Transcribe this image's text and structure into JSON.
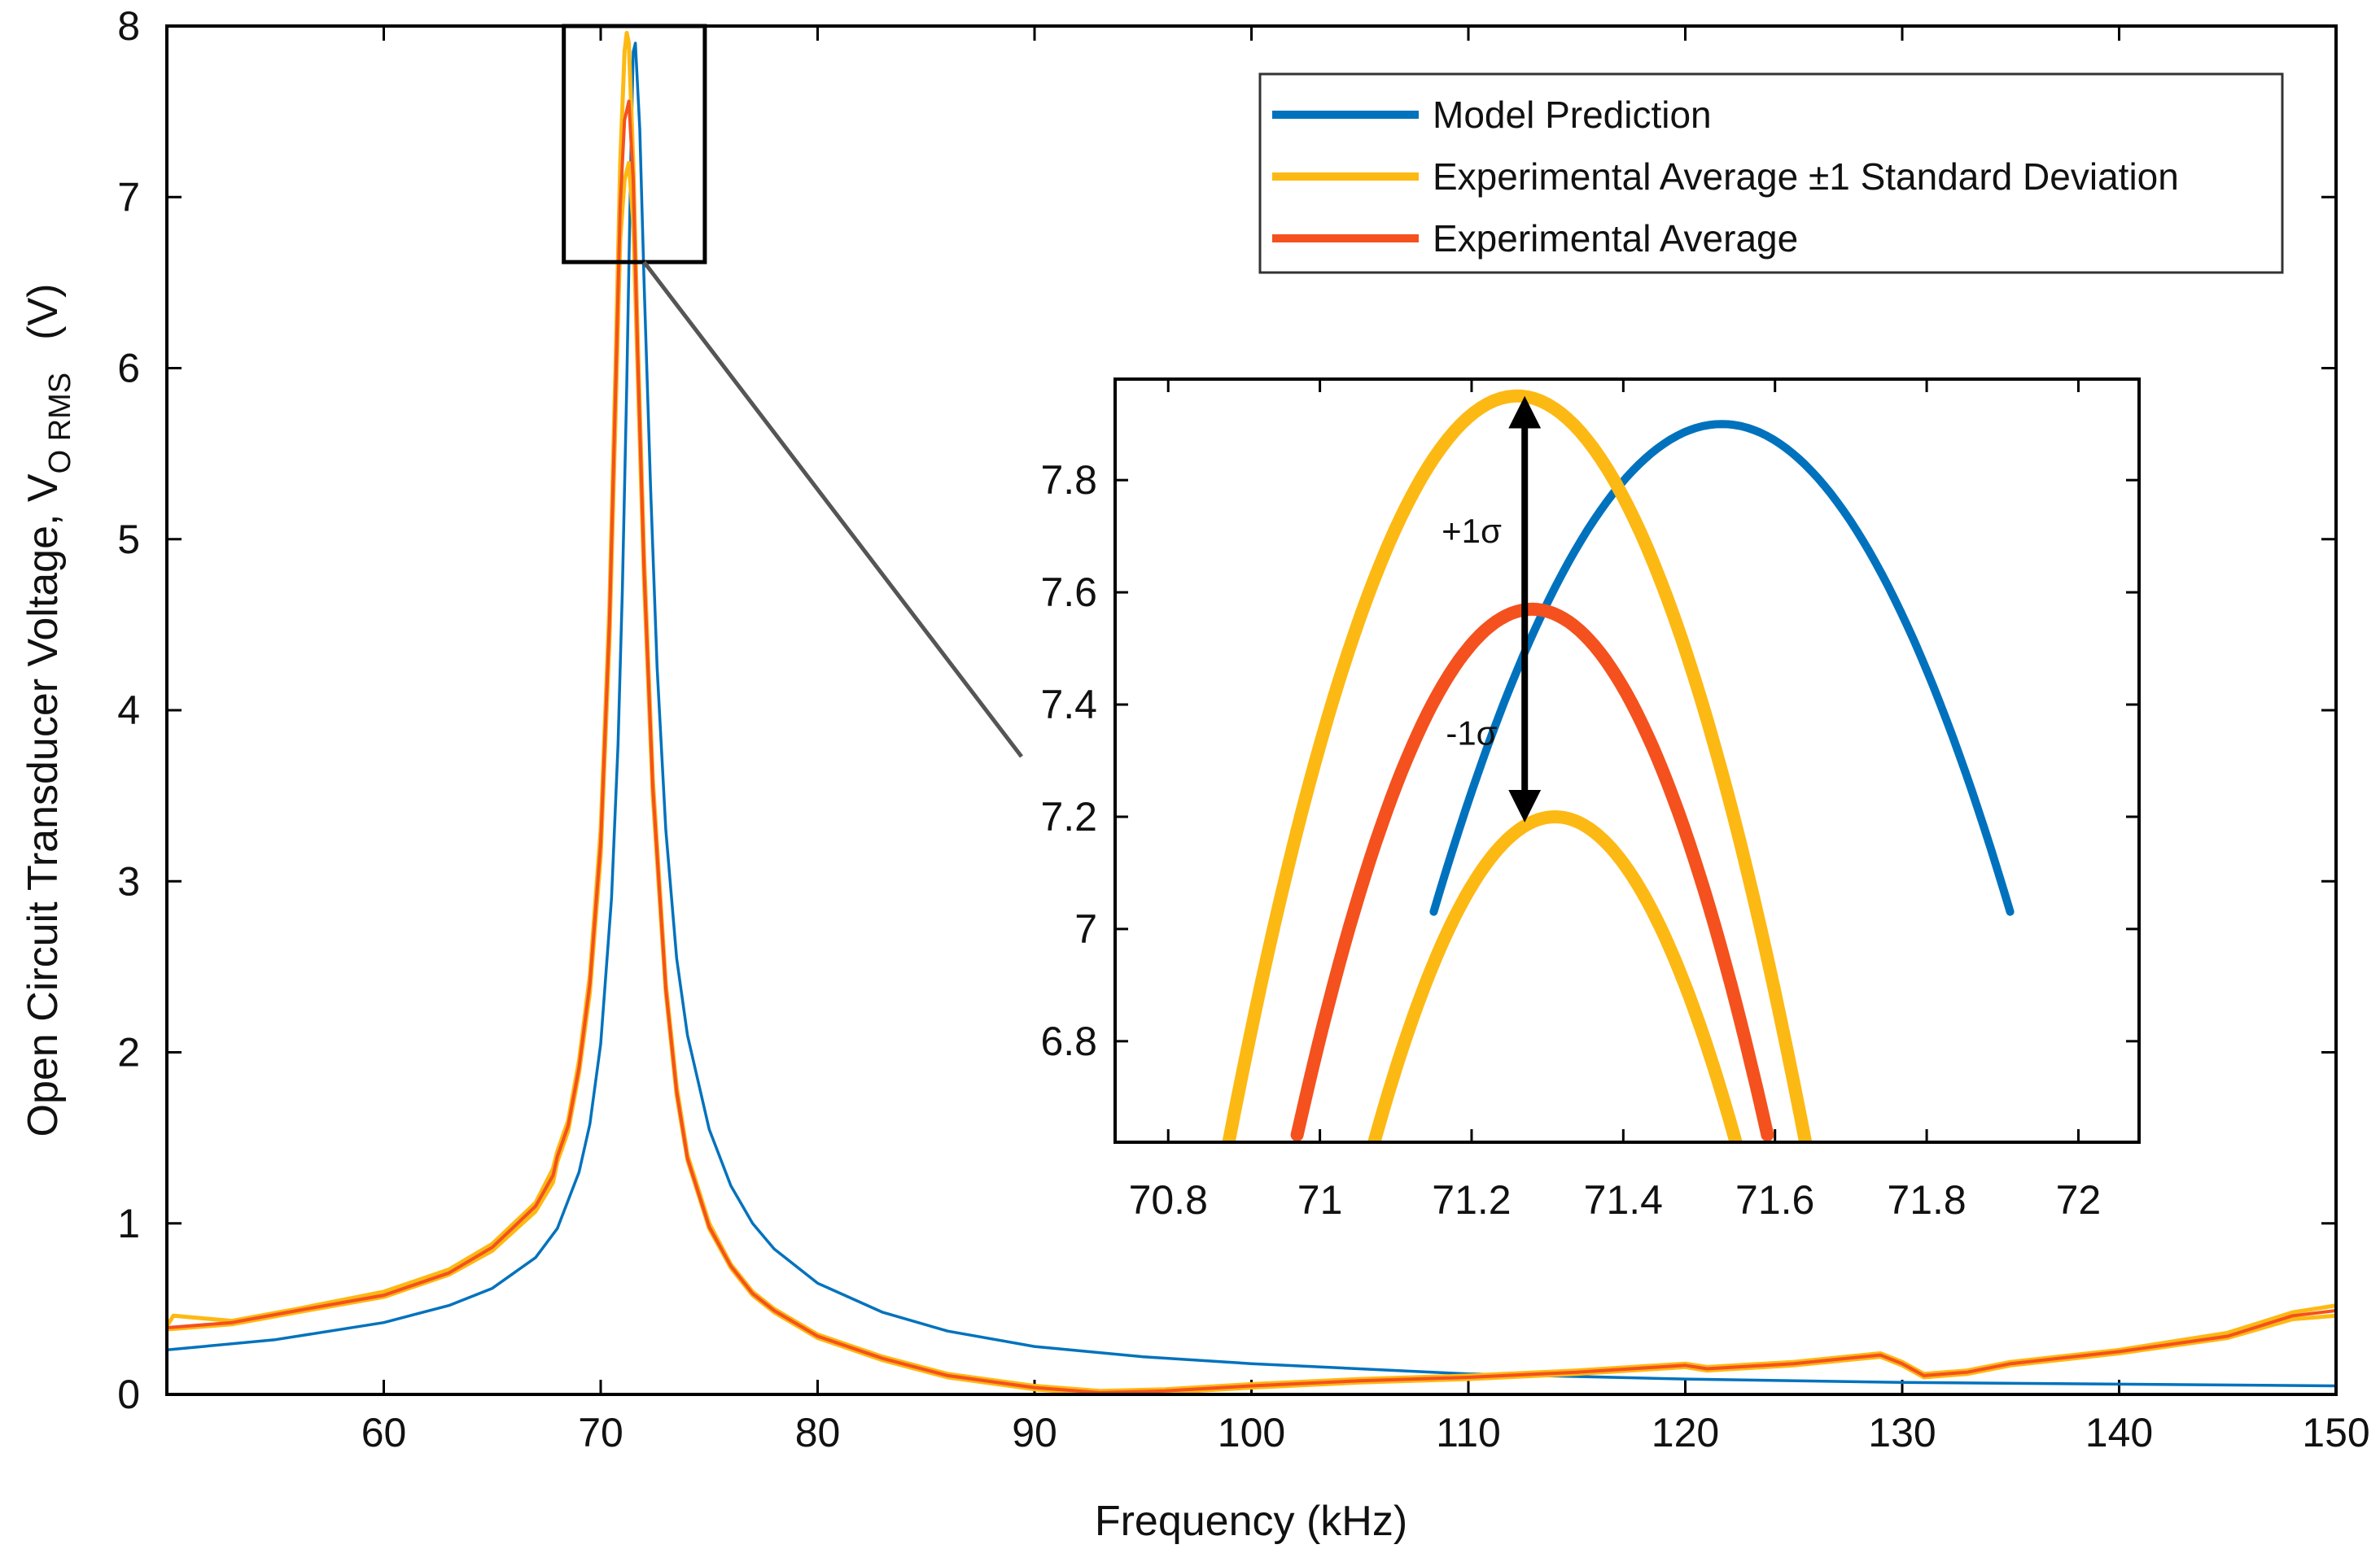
{
  "chart_data": [
    {
      "id": "main",
      "type": "line",
      "title": "",
      "xlabel": "Frequency (kHz)",
      "ylabel": "Open Circuit Transducer Voltage, V",
      "ylabel_subscript": "O RMS",
      "ylabel_units": "(V)",
      "xlim": [
        50,
        150
      ],
      "ylim": [
        0,
        8
      ],
      "xticks": [
        60,
        70,
        80,
        90,
        100,
        110,
        120,
        130,
        140,
        150
      ],
      "yticks": [
        0,
        1,
        2,
        3,
        4,
        5,
        6,
        7,
        8
      ],
      "grid": false,
      "legend_position": "top-right",
      "legend": [
        {
          "label": "Model Prediction",
          "color": "#0072BD"
        },
        {
          "label": "Experimental Average ±1 Standard Deviation",
          "color": "#FDB913"
        },
        {
          "label": "Experimental Average",
          "color": "#F4511E"
        }
      ],
      "zoom_box": {
        "x_range": [
          68.3,
          74.8
        ],
        "y_range": [
          6.62,
          8.0
        ]
      },
      "series": [
        {
          "name": "Model Prediction",
          "color": "#0072BD",
          "x": [
            50,
            55,
            60,
            63,
            65,
            67,
            68,
            69,
            69.5,
            70,
            70.5,
            70.8,
            71,
            71.2,
            71.4,
            71.5,
            71.6,
            71.8,
            72,
            72.3,
            72.6,
            73,
            73.5,
            74,
            75,
            76,
            77,
            78,
            80,
            83,
            86,
            90,
            95,
            100,
            110,
            120,
            130,
            140,
            150
          ],
          "y": [
            0.26,
            0.32,
            0.42,
            0.52,
            0.62,
            0.8,
            0.97,
            1.3,
            1.58,
            2.05,
            2.9,
            3.8,
            4.7,
            5.9,
            7.3,
            7.85,
            7.9,
            7.4,
            6.5,
            5.3,
            4.25,
            3.3,
            2.55,
            2.1,
            1.55,
            1.22,
            1.0,
            0.85,
            0.65,
            0.48,
            0.37,
            0.28,
            0.22,
            0.18,
            0.12,
            0.09,
            0.07,
            0.06,
            0.05
          ]
        },
        {
          "name": "Experimental Average + 1σ",
          "color": "#FDB913",
          "x": [
            50,
            50.3,
            53,
            56,
            60,
            63,
            65,
            67,
            67.8,
            68,
            68.5,
            69,
            69.5,
            70,
            70.4,
            70.7,
            70.9,
            71.1,
            71.2,
            71.3,
            71.5,
            71.7,
            72,
            72.4,
            73,
            73.5,
            74,
            75,
            76,
            77,
            78,
            80,
            83,
            86,
            90,
            93,
            96,
            100,
            105,
            110,
            115,
            120,
            121,
            125,
            129,
            130,
            131,
            133,
            135,
            140,
            145,
            148,
            150
          ],
          "y": [
            0.4,
            0.46,
            0.43,
            0.5,
            0.6,
            0.73,
            0.88,
            1.12,
            1.32,
            1.42,
            1.6,
            1.95,
            2.45,
            3.3,
            4.6,
            6.1,
            7.2,
            7.85,
            7.96,
            7.9,
            7.2,
            6.2,
            4.9,
            3.6,
            2.4,
            1.8,
            1.4,
            1.0,
            0.76,
            0.6,
            0.5,
            0.35,
            0.22,
            0.12,
            0.05,
            0.02,
            0.03,
            0.06,
            0.09,
            0.11,
            0.14,
            0.18,
            0.16,
            0.19,
            0.24,
            0.19,
            0.12,
            0.14,
            0.19,
            0.26,
            0.36,
            0.48,
            0.52
          ]
        },
        {
          "name": "Experimental Average − 1σ",
          "color": "#FDB913",
          "x": [
            50,
            53,
            56,
            60,
            63,
            65,
            67,
            67.8,
            68,
            68.5,
            69,
            69.5,
            70,
            70.4,
            70.7,
            70.9,
            71.1,
            71.3,
            71.5,
            71.7,
            72,
            72.4,
            73,
            73.5,
            74,
            75,
            76,
            77,
            78,
            80,
            83,
            86,
            90,
            93,
            96,
            100,
            105,
            110,
            115,
            120,
            121,
            125,
            129,
            130,
            131,
            133,
            135,
            140,
            145,
            148,
            150
          ],
          "y": [
            0.38,
            0.41,
            0.48,
            0.57,
            0.7,
            0.84,
            1.07,
            1.24,
            1.36,
            1.54,
            1.88,
            2.35,
            3.15,
            4.4,
            5.8,
            6.75,
            7.1,
            7.2,
            6.85,
            6.0,
            4.75,
            3.5,
            2.35,
            1.75,
            1.37,
            0.97,
            0.74,
            0.58,
            0.48,
            0.33,
            0.2,
            0.1,
            0.03,
            0.0,
            0.01,
            0.04,
            0.07,
            0.09,
            0.12,
            0.16,
            0.14,
            0.17,
            0.22,
            0.17,
            0.1,
            0.12,
            0.17,
            0.24,
            0.33,
            0.44,
            0.46
          ]
        },
        {
          "name": "Experimental Average",
          "color": "#F4511E",
          "x": [
            50,
            53,
            56,
            60,
            63,
            65,
            67,
            67.8,
            68,
            68.5,
            69,
            69.5,
            70,
            70.4,
            70.7,
            70.9,
            71.1,
            71.3,
            71.5,
            71.7,
            72,
            72.4,
            73,
            73.5,
            74,
            75,
            76,
            77,
            78,
            80,
            83,
            86,
            90,
            93,
            96,
            100,
            105,
            110,
            115,
            120,
            121,
            125,
            129,
            130,
            131,
            133,
            135,
            140,
            145,
            148,
            150
          ],
          "y": [
            0.39,
            0.42,
            0.49,
            0.58,
            0.71,
            0.86,
            1.1,
            1.28,
            1.39,
            1.57,
            1.91,
            2.4,
            3.22,
            4.5,
            5.95,
            6.95,
            7.45,
            7.56,
            7.1,
            6.1,
            4.82,
            3.55,
            2.37,
            1.77,
            1.38,
            0.98,
            0.75,
            0.59,
            0.49,
            0.34,
            0.21,
            0.11,
            0.04,
            0.01,
            0.02,
            0.05,
            0.08,
            0.1,
            0.13,
            0.17,
            0.15,
            0.18,
            0.23,
            0.18,
            0.11,
            0.13,
            0.18,
            0.25,
            0.34,
            0.46,
            0.49
          ]
        }
      ]
    },
    {
      "id": "inset",
      "type": "line",
      "title": "",
      "xlim": [
        70.73,
        72.08
      ],
      "ylim": [
        6.62,
        7.98
      ],
      "xticks": [
        70.8,
        71,
        71.2,
        71.4,
        71.6,
        71.8,
        72
      ],
      "xtick_labels": [
        "70.8",
        "71",
        "71.2",
        "71.4",
        "71.6",
        "71.8",
        "72"
      ],
      "yticks": [
        6.8,
        7.0,
        7.2,
        7.4,
        7.6,
        7.8
      ],
      "ytick_labels": [
        "6.8",
        "7",
        "7.2",
        "7.4",
        "7.6",
        "7.8"
      ],
      "grid": false,
      "series": [
        {
          "name": "Model Prediction",
          "color": "#0072BD",
          "peak_x": 71.53,
          "peak_y": 7.9,
          "curvature": 6.02,
          "x_range": [
            71.15,
            71.91
          ]
        },
        {
          "name": "Experimental Average + 1σ",
          "color": "#FDB913",
          "peak_x": 71.26,
          "peak_y": 7.95,
          "curvature": 9.2,
          "x_range": [
            70.87,
            71.66
          ]
        },
        {
          "name": "Experimental Average",
          "color": "#F4511E",
          "peak_x": 71.28,
          "peak_y": 7.57,
          "curvature": 9.75,
          "x_range": [
            70.97,
            71.59
          ]
        },
        {
          "name": "Experimental Average − 1σ",
          "color": "#FDB913",
          "peak_x": 71.31,
          "peak_y": 7.2,
          "curvature": 10.2,
          "x_range": [
            71.07,
            71.55
          ]
        }
      ],
      "arrow": {
        "x": 71.27,
        "y_from": 7.19,
        "y_to": 7.95
      },
      "annotations": [
        {
          "label": "+1σ",
          "x": 71.2,
          "y": 7.71
        },
        {
          "label": "-1σ",
          "x": 71.2,
          "y": 7.35
        }
      ]
    }
  ]
}
